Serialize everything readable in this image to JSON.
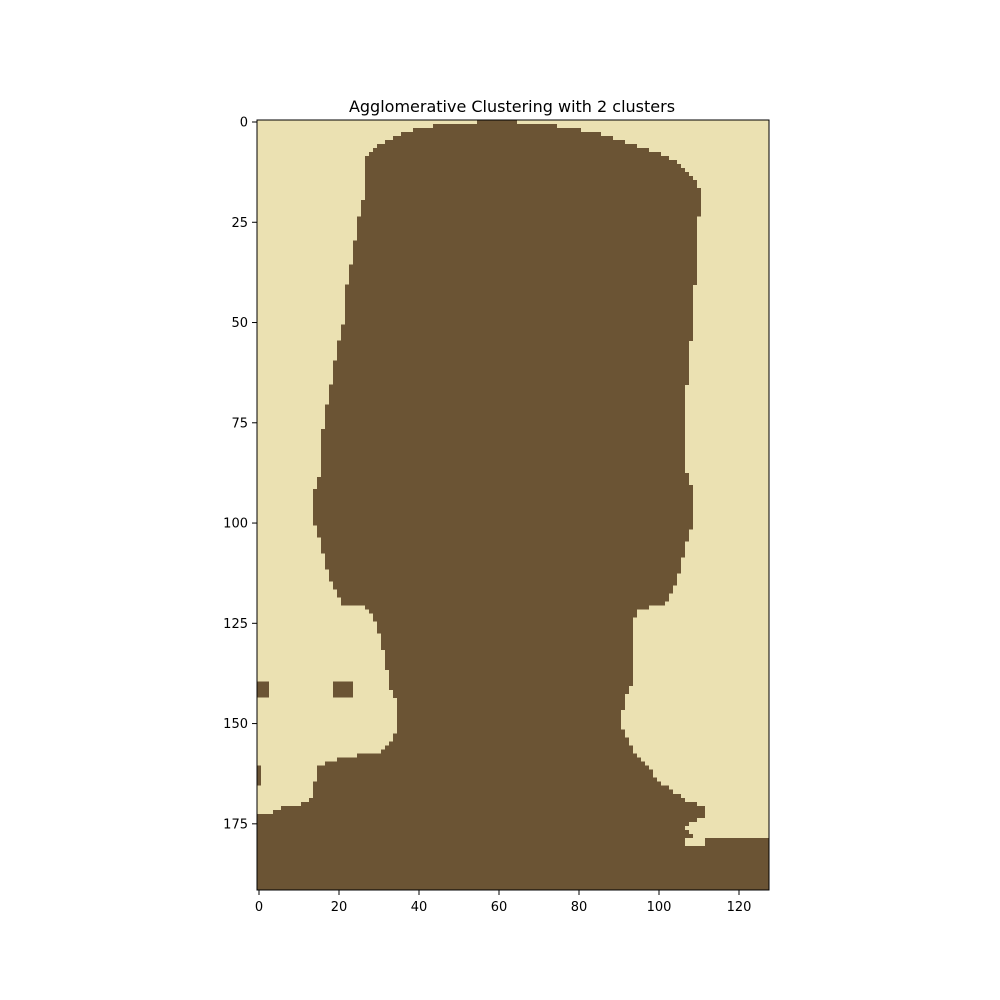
{
  "chart_data": {
    "type": "heatmap",
    "title": "Agglomerative Clustering with 2 clusters",
    "xlabel": "",
    "ylabel": "",
    "image_width": 128,
    "image_height": 192,
    "xlim": [
      -0.5,
      127.5
    ],
    "ylim": [
      191.5,
      -0.5
    ],
    "x_ticks": [
      0,
      20,
      40,
      60,
      80,
      100,
      120
    ],
    "y_ticks": [
      0,
      25,
      50,
      75,
      100,
      125,
      150,
      175
    ],
    "colors": {
      "background": "#ebe1b2",
      "foreground": "#6b5434"
    },
    "clusters": [
      {
        "label": 0,
        "color": "#ebe1b2"
      },
      {
        "label": 1,
        "color": "#6b5434"
      }
    ],
    "foreground_row_extents": [
      {
        "row": 0,
        "x_start": 55,
        "x_end": 64
      },
      {
        "row": 1,
        "x_start": 44,
        "x_end": 74
      },
      {
        "row": 2,
        "x_start": 39,
        "x_end": 80
      },
      {
        "row": 3,
        "x_start": 36,
        "x_end": 85
      },
      {
        "row": 4,
        "x_start": 34,
        "x_end": 88
      },
      {
        "row": 5,
        "x_start": 32,
        "x_end": 91
      },
      {
        "row": 6,
        "x_start": 30,
        "x_end": 94
      },
      {
        "row": 7,
        "x_start": 29,
        "x_end": 97
      },
      {
        "row": 8,
        "x_start": 28,
        "x_end": 100
      },
      {
        "row": 9,
        "x_start": 27,
        "x_end": 102
      },
      {
        "row": 10,
        "x_start": 27,
        "x_end": 104
      },
      {
        "row": 12,
        "x_start": 27,
        "x_end": 106
      },
      {
        "row": 14,
        "x_start": 27,
        "x_end": 108
      },
      {
        "row": 16,
        "x_start": 27,
        "x_end": 109
      },
      {
        "row": 18,
        "x_start": 27,
        "x_end": 110
      },
      {
        "row": 20,
        "x_start": 26,
        "x_end": 110
      },
      {
        "row": 26,
        "x_start": 25,
        "x_end": 109
      },
      {
        "row": 32,
        "x_start": 24,
        "x_end": 109
      },
      {
        "row": 38,
        "x_start": 23,
        "x_end": 109
      },
      {
        "row": 42,
        "x_start": 22,
        "x_end": 108
      },
      {
        "row": 48,
        "x_start": 22,
        "x_end": 108
      },
      {
        "row": 52,
        "x_start": 21,
        "x_end": 108
      },
      {
        "row": 56,
        "x_start": 20,
        "x_end": 107
      },
      {
        "row": 62,
        "x_start": 19,
        "x_end": 107
      },
      {
        "row": 68,
        "x_start": 18,
        "x_end": 106
      },
      {
        "row": 72,
        "x_start": 17,
        "x_end": 106
      },
      {
        "row": 80,
        "x_start": 16,
        "x_end": 106
      },
      {
        "row": 86,
        "x_start": 16,
        "x_end": 106
      },
      {
        "row": 90,
        "x_start": 15,
        "x_end": 107
      },
      {
        "row": 92,
        "x_start": 14,
        "x_end": 108
      },
      {
        "row": 100,
        "x_start": 14,
        "x_end": 108
      },
      {
        "row": 102,
        "x_start": 15,
        "x_end": 107
      },
      {
        "row": 106,
        "x_start": 16,
        "x_end": 106
      },
      {
        "row": 110,
        "x_start": 17,
        "x_end": 105
      },
      {
        "row": 114,
        "x_start": 18,
        "x_end": 104
      },
      {
        "row": 116,
        "x_start": 19,
        "x_end": 103
      },
      {
        "row": 118,
        "x_start": 20,
        "x_end": 102
      },
      {
        "row": 120,
        "x_start": 21,
        "x_end": 101
      },
      {
        "row": 121,
        "x_start": 27,
        "x_end": 97
      },
      {
        "row": 122,
        "x_start": 28,
        "x_end": 94
      },
      {
        "row": 125,
        "x_start": 30,
        "x_end": 93
      },
      {
        "row": 130,
        "x_start": 31,
        "x_end": 93
      },
      {
        "row": 134,
        "x_start": 32,
        "x_end": 93
      },
      {
        "row": 139,
        "x_start": 33,
        "x_end": 93
      },
      {
        "row": 141,
        "x_start": 33,
        "x_end": 92
      },
      {
        "row": 143,
        "x_start": 34,
        "x_end": 91
      },
      {
        "row": 145,
        "x_start": 35,
        "x_end": 91
      },
      {
        "row": 148,
        "x_start": 35,
        "x_end": 90
      },
      {
        "row": 151,
        "x_start": 35,
        "x_end": 90
      },
      {
        "row": 153,
        "x_start": 34,
        "x_end": 91
      },
      {
        "row": 155,
        "x_start": 33,
        "x_end": 92
      },
      {
        "row": 157,
        "x_start": 31,
        "x_end": 93
      },
      {
        "row": 158,
        "x_start": 25,
        "x_end": 94
      },
      {
        "row": 159,
        "x_start": 20,
        "x_end": 95
      },
      {
        "row": 160,
        "x_start": 17,
        "x_end": 96
      },
      {
        "row": 161,
        "x_start": 15,
        "x_end": 97
      },
      {
        "row": 163,
        "x_start": 15,
        "x_end": 98
      },
      {
        "row": 165,
        "x_start": 14,
        "x_end": 100
      },
      {
        "row": 167,
        "x_start": 14,
        "x_end": 103
      },
      {
        "row": 169,
        "x_start": 13,
        "x_end": 106
      },
      {
        "row": 170,
        "x_start": 11,
        "x_end": 109
      },
      {
        "row": 171,
        "x_start": 6,
        "x_end": 111
      },
      {
        "row": 172,
        "x_start": 4,
        "x_end": 111
      },
      {
        "row": 173,
        "x_start": 0,
        "x_end": 111
      },
      {
        "row": 175,
        "x_start": 0,
        "x_end": 107
      },
      {
        "row": 176,
        "x_start": 0,
        "x_end": 106
      },
      {
        "row": 178,
        "x_start": 0,
        "x_end": 108
      },
      {
        "row": 179,
        "x_start": 0,
        "x_end": 127
      },
      {
        "row": 191,
        "x_start": 0,
        "x_end": 127
      }
    ],
    "foreground_blobs": [
      {
        "row_start": 140,
        "row_end": 143,
        "x_start": 0,
        "x_end": 2
      },
      {
        "row_start": 140,
        "row_end": 143,
        "x_start": 19,
        "x_end": 23
      },
      {
        "row_start": 161,
        "row_end": 165,
        "x_start": 0,
        "x_end": 0
      }
    ],
    "background_notches": [
      {
        "row_start": 121,
        "row_end": 122,
        "x_start": 22,
        "x_end": 26
      },
      {
        "row_start": 121,
        "row_end": 122,
        "x_start": 98,
        "x_end": 100
      },
      {
        "row_start": 179,
        "row_end": 180,
        "x_start": 107,
        "x_end": 111
      }
    ]
  }
}
